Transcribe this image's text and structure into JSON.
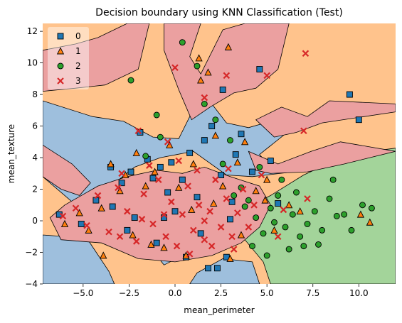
{
  "chart_data": {
    "type": "scatter",
    "title": "Decision boundary using KNN Classification (Test)",
    "xlabel": "mean_perimeter",
    "ylabel": "mean_texture",
    "xlim": [
      -7.2,
      12.0
    ],
    "ylim": [
      -4.0,
      12.5
    ],
    "xticks": [
      -5.0,
      -2.5,
      0.0,
      2.5,
      5.0,
      7.5,
      10.0
    ],
    "xtick_labels": [
      "−5.0",
      "−2.5",
      "0.0",
      "2.5",
      "5.0",
      "7.5",
      "10.0"
    ],
    "yticks": [
      -4,
      -2,
      0,
      2,
      4,
      6,
      8,
      10,
      12
    ],
    "ytick_labels": [
      "−4",
      "−2",
      "0",
      "2",
      "4",
      "6",
      "8",
      "10",
      "12"
    ],
    "grid": false,
    "legend_position": "top-left",
    "background_class": 1,
    "regions": [
      {
        "class": 0,
        "points": [
          [
            -7.2,
            7.6
          ],
          [
            -4.5,
            6.6
          ],
          [
            -2.8,
            6.3
          ],
          [
            -1.2,
            5.3
          ],
          [
            0.2,
            5.2
          ],
          [
            0.8,
            6.6
          ],
          [
            2.0,
            7.4
          ],
          [
            2.8,
            6.2
          ],
          [
            4.0,
            5.9
          ],
          [
            5.2,
            6.3
          ],
          [
            6.1,
            5.6
          ],
          [
            4.6,
            4.2
          ],
          [
            5.4,
            3.1
          ],
          [
            7.2,
            3.2
          ],
          [
            4.2,
            2.8
          ],
          [
            2.8,
            2.9
          ],
          [
            1.0,
            4.4
          ],
          [
            -0.8,
            4.0
          ],
          [
            -2.2,
            3.4
          ],
          [
            -3.6,
            2.1
          ],
          [
            -5.6,
            1.2
          ],
          [
            -7.2,
            2.8
          ]
        ]
      },
      {
        "class": 0,
        "points": [
          [
            -7.2,
            -0.9
          ],
          [
            -4.8,
            -1.1
          ],
          [
            -3.6,
            -3.2
          ],
          [
            -3.3,
            -4.0
          ],
          [
            -7.2,
            -4.0
          ]
        ]
      },
      {
        "class": 0,
        "points": [
          [
            1.2,
            -3.3
          ],
          [
            2.6,
            -2.4
          ],
          [
            4.2,
            -2.6
          ],
          [
            4.6,
            -4.0
          ],
          [
            0.8,
            -4.0
          ]
        ]
      },
      {
        "class": 0,
        "points": [
          [
            -1.4,
            -1.6
          ],
          [
            -0.6,
            -2.8
          ],
          [
            0.4,
            -2.2
          ],
          [
            0.2,
            -1.4
          ]
        ]
      },
      {
        "class": 2,
        "points": [
          [
            3.2,
            0.4
          ],
          [
            5.2,
            1.6
          ],
          [
            7.0,
            2.9
          ],
          [
            9.4,
            4.2
          ],
          [
            12.0,
            4.6
          ],
          [
            12.0,
            -4.0
          ],
          [
            5.2,
            -4.0
          ],
          [
            4.8,
            -2.6
          ],
          [
            3.8,
            -1.2
          ]
        ]
      },
      {
        "class": 3,
        "points": [
          [
            -0.6,
            12.5
          ],
          [
            1.4,
            12.5
          ],
          [
            0.8,
            10.4
          ],
          [
            1.4,
            9.3
          ],
          [
            2.6,
            12.1
          ],
          [
            3.8,
            12.5
          ],
          [
            6.2,
            12.5
          ],
          [
            5.6,
            9.6
          ],
          [
            4.4,
            8.4
          ],
          [
            3.2,
            8.1
          ],
          [
            1.9,
            7.2
          ],
          [
            0.9,
            6.4
          ],
          [
            0.2,
            8.3
          ],
          [
            -0.6,
            10.8
          ]
        ]
      },
      {
        "class": 3,
        "points": [
          [
            -7.2,
            10.8
          ],
          [
            -5.4,
            11.2
          ],
          [
            -4.2,
            11.6
          ],
          [
            -2.6,
            12.5
          ],
          [
            -1.4,
            12.5
          ],
          [
            -2.0,
            9.6
          ],
          [
            -3.8,
            8.6
          ],
          [
            -5.4,
            8.4
          ],
          [
            -7.2,
            8.2
          ]
        ]
      },
      {
        "class": 3,
        "points": [
          [
            -7.2,
            4.8
          ],
          [
            -5.6,
            3.6
          ],
          [
            -4.6,
            2.4
          ],
          [
            -5.2,
            1.6
          ],
          [
            -6.2,
            2.0
          ],
          [
            -7.2,
            2.8
          ]
        ]
      },
      {
        "class": 3,
        "points": [
          [
            4.0,
            4.4
          ],
          [
            5.6,
            3.6
          ],
          [
            7.4,
            4.4
          ],
          [
            9.0,
            5.0
          ],
          [
            12.0,
            4.4
          ],
          [
            9.2,
            3.6
          ],
          [
            7.2,
            3.1
          ],
          [
            5.2,
            3.0
          ],
          [
            4.4,
            3.2
          ]
        ]
      },
      {
        "class": 3,
        "points": [
          [
            4.4,
            6.4
          ],
          [
            5.8,
            7.2
          ],
          [
            7.2,
            6.6
          ],
          [
            8.4,
            7.6
          ],
          [
            12.0,
            7.4
          ],
          [
            12.0,
            6.9
          ],
          [
            8.0,
            6.2
          ],
          [
            6.6,
            5.6
          ],
          [
            5.4,
            5.3
          ]
        ]
      },
      {
        "class": 3,
        "points": [
          [
            -6.2,
            -1.2
          ],
          [
            -4.0,
            -1.4
          ],
          [
            -2.0,
            -2.4
          ],
          [
            0.0,
            -2.6
          ],
          [
            2.0,
            -2.2
          ],
          [
            3.6,
            -1.4
          ],
          [
            4.6,
            -0.4
          ],
          [
            5.2,
            1.0
          ],
          [
            4.6,
            2.2
          ],
          [
            3.0,
            2.8
          ],
          [
            1.6,
            3.4
          ],
          [
            0.4,
            3.0
          ],
          [
            -1.0,
            3.2
          ],
          [
            -2.6,
            2.8
          ],
          [
            -4.2,
            2.2
          ],
          [
            -6.0,
            1.0
          ],
          [
            -6.8,
            0.2
          ]
        ]
      }
    ],
    "series": [
      {
        "name": "0",
        "marker": "square",
        "color": "#1f77b4",
        "points": [
          [
            -6.3,
            0.4
          ],
          [
            -5.1,
            -0.2
          ],
          [
            -4.3,
            1.3
          ],
          [
            -3.5,
            3.4
          ],
          [
            -3.4,
            0.9
          ],
          [
            -2.9,
            2.4
          ],
          [
            -2.4,
            3.1
          ],
          [
            -2.2,
            0.2
          ],
          [
            -1.9,
            5.6
          ],
          [
            -1.5,
            3.9
          ],
          [
            -1.2,
            2.7
          ],
          [
            -0.8,
            3.4
          ],
          [
            -0.4,
            1.8
          ],
          [
            -0.2,
            3.7
          ],
          [
            0.0,
            0.6
          ],
          [
            0.4,
            2.6
          ],
          [
            0.8,
            4.3
          ],
          [
            1.2,
            1.5
          ],
          [
            1.6,
            5.1
          ],
          [
            2.0,
            6.0
          ],
          [
            2.5,
            2.9
          ],
          [
            2.6,
            8.3
          ],
          [
            2.8,
            -2.3
          ],
          [
            3.1,
            1.2
          ],
          [
            3.3,
            4.2
          ],
          [
            3.6,
            5.5
          ],
          [
            4.2,
            3.1
          ],
          [
            4.6,
            9.6
          ],
          [
            5.2,
            3.8
          ],
          [
            5.6,
            1.1
          ],
          [
            9.5,
            8.0
          ],
          [
            10.0,
            6.4
          ],
          [
            -1.0,
            -1.4
          ],
          [
            0.6,
            -2.3
          ],
          [
            1.8,
            -3.0
          ],
          [
            2.3,
            -3.0
          ],
          [
            3.0,
            0.1
          ],
          [
            -2.6,
            -0.6
          ],
          [
            -0.6,
            0.2
          ],
          [
            1.4,
            -0.8
          ]
        ]
      },
      {
        "name": "1",
        "marker": "triangle",
        "color": "#ff7f0e",
        "points": [
          [
            -6.0,
            -0.2
          ],
          [
            -5.2,
            0.5
          ],
          [
            -4.7,
            -0.6
          ],
          [
            -4.0,
            0.8
          ],
          [
            -3.5,
            3.6
          ],
          [
            -3.0,
            1.9
          ],
          [
            -2.7,
            2.9
          ],
          [
            -2.3,
            -0.9
          ],
          [
            -2.1,
            4.3
          ],
          [
            -1.6,
            2.2
          ],
          [
            -1.1,
            3.1
          ],
          [
            -0.6,
            -1.7
          ],
          [
            -0.3,
            4.8
          ],
          [
            0.2,
            2.1
          ],
          [
            0.6,
            -2.2
          ],
          [
            1.0,
            3.6
          ],
          [
            1.4,
            8.9
          ],
          [
            1.8,
            9.4
          ],
          [
            2.2,
            5.4
          ],
          [
            2.6,
            2.2
          ],
          [
            3.0,
            -2.4
          ],
          [
            3.4,
            3.7
          ],
          [
            3.8,
            5.0
          ],
          [
            4.4,
            1.9
          ],
          [
            5.0,
            2.6
          ],
          [
            5.4,
            -0.6
          ],
          [
            6.2,
            1.0
          ],
          [
            6.8,
            0.6
          ],
          [
            10.1,
            0.4
          ],
          [
            10.6,
            -0.1
          ],
          [
            -3.9,
            -2.2
          ],
          [
            -1.3,
            -1.5
          ],
          [
            0.9,
            0.7
          ],
          [
            2.1,
            1.1
          ],
          [
            3.6,
            -0.9
          ],
          [
            4.9,
            1.3
          ],
          [
            2.9,
            11.0
          ],
          [
            1.3,
            10.3
          ]
        ]
      },
      {
        "name": "2",
        "marker": "circle",
        "color": "#2ca02c",
        "points": [
          [
            0.4,
            11.3
          ],
          [
            1.2,
            9.8
          ],
          [
            -2.4,
            8.9
          ],
          [
            -1.0,
            6.7
          ],
          [
            1.6,
            7.4
          ],
          [
            2.2,
            6.4
          ],
          [
            3.0,
            5.1
          ],
          [
            3.6,
            2.1
          ],
          [
            4.0,
            1.3
          ],
          [
            4.4,
            0.2
          ],
          [
            4.8,
            -0.8
          ],
          [
            5.2,
            0.8
          ],
          [
            5.6,
            1.6
          ],
          [
            6.0,
            -0.4
          ],
          [
            6.4,
            0.4
          ],
          [
            6.8,
            -1.0
          ],
          [
            7.2,
            -0.2
          ],
          [
            7.6,
            0.6
          ],
          [
            8.0,
            -0.6
          ],
          [
            8.4,
            1.4
          ],
          [
            8.8,
            0.3
          ],
          [
            9.2,
            0.4
          ],
          [
            9.6,
            -0.6
          ],
          [
            10.2,
            1.0
          ],
          [
            10.7,
            0.8
          ],
          [
            7.0,
            -1.6
          ],
          [
            6.2,
            -1.8
          ],
          [
            5.0,
            -2.2
          ],
          [
            7.8,
            -1.5
          ],
          [
            5.8,
            2.6
          ],
          [
            8.6,
            2.6
          ],
          [
            4.6,
            3.4
          ],
          [
            3.2,
            1.6
          ],
          [
            4.2,
            -1.6
          ],
          [
            5.4,
            -0.1
          ],
          [
            3.8,
            0.9
          ],
          [
            6.6,
            1.8
          ],
          [
            2.6,
            3.6
          ],
          [
            -1.6,
            4.1
          ],
          [
            -0.8,
            5.3
          ]
        ]
      },
      {
        "name": "3",
        "marker": "x",
        "color": "#d62728",
        "points": [
          [
            7.1,
            10.6
          ],
          [
            5.0,
            9.2
          ],
          [
            2.8,
            9.2
          ],
          [
            0.0,
            9.7
          ],
          [
            1.6,
            7.8
          ],
          [
            -2.0,
            5.7
          ],
          [
            -0.4,
            5.0
          ],
          [
            7.0,
            5.7
          ],
          [
            4.7,
            2.9
          ],
          [
            7.2,
            1.4
          ],
          [
            -6.1,
            0.3
          ],
          [
            -5.4,
            0.8
          ],
          [
            -4.8,
            -0.3
          ],
          [
            -4.2,
            1.6
          ],
          [
            -3.6,
            -0.7
          ],
          [
            -3.1,
            2.1
          ],
          [
            -2.6,
            0.6
          ],
          [
            -2.1,
            -1.3
          ],
          [
            -1.7,
            1.7
          ],
          [
            -1.2,
            -0.2
          ],
          [
            -0.9,
            2.6
          ],
          [
            -0.5,
            -1.0
          ],
          [
            -0.2,
            1.2
          ],
          [
            0.1,
            -1.6
          ],
          [
            0.4,
            0.4
          ],
          [
            0.7,
            2.2
          ],
          [
            1.0,
            -0.6
          ],
          [
            1.3,
            1.0
          ],
          [
            1.6,
            -1.2
          ],
          [
            1.9,
            0.6
          ],
          [
            2.2,
            2.6
          ],
          [
            2.5,
            -0.4
          ],
          [
            2.8,
            1.4
          ],
          [
            3.1,
            -1.0
          ],
          [
            3.4,
            0.5
          ],
          [
            3.7,
            2.0
          ],
          [
            4.0,
            -0.4
          ],
          [
            4.3,
            1.0
          ],
          [
            1.2,
            3.2
          ],
          [
            -1.4,
            3.5
          ],
          [
            0.2,
            3.8
          ],
          [
            2.9,
            3.3
          ],
          [
            -2.9,
            3.0
          ],
          [
            -0.6,
            0.4
          ],
          [
            1.6,
            0.0
          ],
          [
            -1.8,
            0.1
          ],
          [
            3.2,
            -1.8
          ],
          [
            0.8,
            -2.1
          ],
          [
            -3.0,
            -1.0
          ],
          [
            2.0,
            -1.6
          ],
          [
            5.9,
            0.7
          ],
          [
            5.6,
            -1.0
          ]
        ]
      }
    ],
    "class_colors": {
      "0": "#9ebfdd",
      "1": "#ffc38c",
      "2": "#a3d49a",
      "3": "#eba0a0"
    }
  }
}
